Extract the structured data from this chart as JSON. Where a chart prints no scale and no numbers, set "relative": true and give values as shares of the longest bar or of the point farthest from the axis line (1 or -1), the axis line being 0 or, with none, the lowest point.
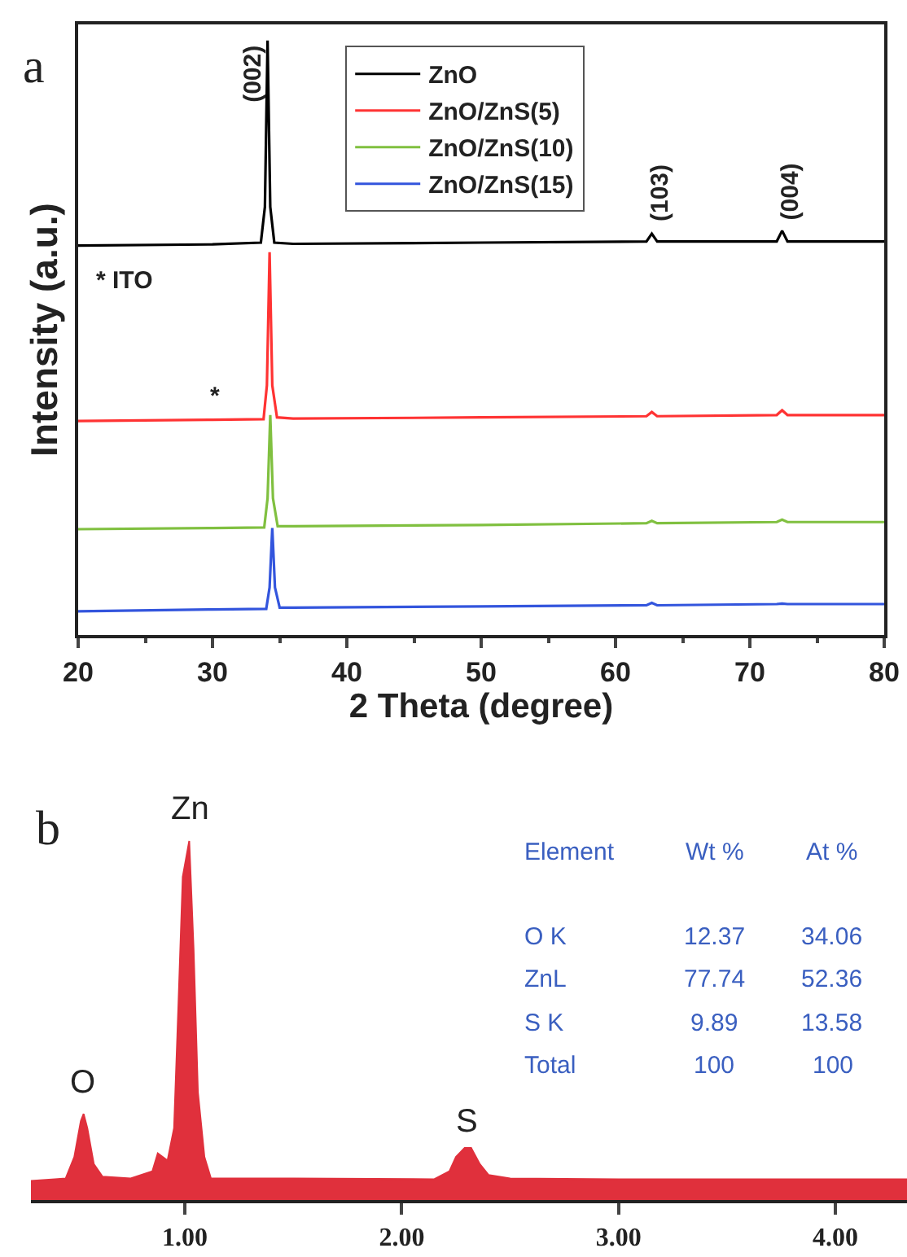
{
  "chart_data": [
    {
      "type": "line",
      "title": "a",
      "xlabel": "2 Theta (degree)",
      "ylabel": "Intensity (a.u.)",
      "relative": true,
      "legend": "top",
      "xlim": [
        20,
        80
      ],
      "xticks": [
        20,
        30,
        40,
        50,
        60,
        70,
        80
      ],
      "series": [
        {
          "name": "ZnO",
          "color": "#000000",
          "x": [
            20,
            30,
            33.6,
            33.9,
            34.1,
            34.3,
            34.6,
            36,
            50,
            62.3,
            62.7,
            63.1,
            72,
            72.4,
            72.8,
            80
          ],
          "values": [
            0.655,
            0.657,
            0.66,
            0.72,
            1.0,
            0.72,
            0.66,
            0.658,
            0.66,
            0.662,
            0.675,
            0.662,
            0.662,
            0.68,
            0.662,
            0.662
          ]
        },
        {
          "name": "ZnO/ZnS(5)",
          "color": "#ff3333",
          "x": [
            20,
            30,
            33.8,
            34.05,
            34.25,
            34.45,
            34.8,
            36,
            50,
            62.3,
            62.7,
            63.1,
            72,
            72.4,
            72.8,
            80
          ],
          "values": [
            0.36,
            0.362,
            0.363,
            0.42,
            0.644,
            0.42,
            0.366,
            0.364,
            0.366,
            0.368,
            0.375,
            0.368,
            0.37,
            0.378,
            0.37,
            0.37
          ]
        },
        {
          "name": "ZnO/ZnS(10)",
          "color": "#80c040",
          "x": [
            20,
            30,
            33.85,
            34.1,
            34.3,
            34.5,
            34.85,
            36,
            50,
            62.3,
            62.7,
            63.1,
            72,
            72.4,
            72.8,
            80
          ],
          "values": [
            0.178,
            0.18,
            0.181,
            0.23,
            0.37,
            0.23,
            0.183,
            0.183,
            0.185,
            0.188,
            0.192,
            0.188,
            0.19,
            0.194,
            0.19,
            0.19
          ]
        },
        {
          "name": "ZnO/ZnS(15)",
          "color": "#3355dd",
          "x": [
            20,
            30,
            34.0,
            34.25,
            34.45,
            34.65,
            35.0,
            36,
            50,
            62.3,
            62.7,
            63.1,
            72,
            72.4,
            72.8,
            80
          ],
          "values": [
            0.04,
            0.043,
            0.044,
            0.08,
            0.18,
            0.08,
            0.046,
            0.046,
            0.048,
            0.05,
            0.054,
            0.05,
            0.052,
            0.053,
            0.052,
            0.052
          ]
        }
      ],
      "annotations": [
        "(002)",
        "(103)",
        "(004)",
        "*",
        "* ITO"
      ]
    },
    {
      "type": "area",
      "title": "b",
      "relative": true,
      "xlim": [
        0.29,
        4.33
      ],
      "xticks": [
        {
          "value": 1,
          "label": "1.00"
        },
        {
          "value": 2,
          "label": "2.00"
        },
        {
          "value": 3,
          "label": "3.00"
        },
        {
          "value": 4,
          "label": "4.00"
        }
      ],
      "series": [
        {
          "color": "#e0303c",
          "x": [
            0.29,
            0.4,
            0.45,
            0.49,
            0.52,
            0.533,
            0.55,
            0.58,
            0.62,
            0.75,
            0.85,
            0.875,
            0.92,
            0.95,
            0.97,
            0.99,
            1.02,
            1.04,
            1.06,
            1.09,
            1.12,
            1.5,
            2.15,
            2.22,
            2.25,
            2.29,
            2.32,
            2.36,
            2.4,
            2.5,
            3.0,
            4.33
          ],
          "values": [
            0.053,
            0.058,
            0.06,
            0.12,
            0.22,
            0.24,
            0.2,
            0.1,
            0.065,
            0.06,
            0.08,
            0.13,
            0.11,
            0.2,
            0.54,
            0.9,
            1.0,
            0.7,
            0.3,
            0.12,
            0.06,
            0.06,
            0.058,
            0.08,
            0.12,
            0.145,
            0.145,
            0.1,
            0.07,
            0.06,
            0.058,
            0.058
          ]
        }
      ],
      "annotations": [
        "O",
        "Zn",
        "S",
        "Element",
        "Wt %",
        "At %",
        "O K",
        "12.37",
        "34.06",
        "ZnL",
        "77.74",
        "52.36",
        "S K",
        "9.89",
        "13.58",
        "Total",
        "100",
        "100"
      ]
    }
  ]
}
